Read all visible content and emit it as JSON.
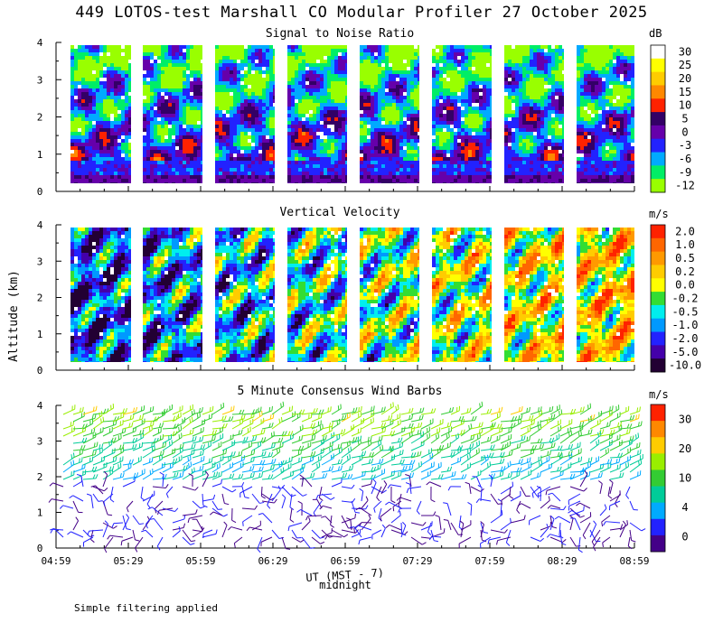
{
  "title": "449 LOTOS-test Marshall CO Modular Profiler 27 October 2025",
  "ylabel": "Altitude (km)",
  "xlabel": "UT (MST - 7)",
  "midnight_label": "midnight",
  "footnote": "Simple filtering applied",
  "chart_data": [
    {
      "type": "heatmap",
      "title": "Signal to Noise Ratio",
      "unit": "dB",
      "ylim": [
        0,
        4
      ],
      "y_ticks": [
        "0",
        "1",
        "2",
        "3",
        "4"
      ],
      "x_ticks": [
        "04:59",
        "05:29",
        "05:59",
        "06:29",
        "06:59",
        "07:29",
        "07:59",
        "08:29",
        "08:59"
      ],
      "scale_labels": [
        "30",
        "25",
        "20",
        "15",
        "10",
        "5",
        "0",
        "-3",
        "-6",
        "-9",
        "-12"
      ],
      "scale_colors": [
        "#ffffff",
        "#ffff00",
        "#ffcc00",
        "#ff8800",
        "#ff2200",
        "#330066",
        "#6600aa",
        "#2222ff",
        "#00aaff",
        "#00ee66",
        "#99ff00"
      ]
    },
    {
      "type": "heatmap",
      "title": "Vertical Velocity",
      "unit": "m/s",
      "ylim": [
        0,
        4
      ],
      "y_ticks": [
        "0",
        "1",
        "2",
        "3",
        "4"
      ],
      "x_ticks": [
        "04:59",
        "05:29",
        "05:59",
        "06:29",
        "06:59",
        "07:29",
        "07:59",
        "08:29",
        "08:59"
      ],
      "scale_labels": [
        "2.0",
        "1.0",
        "0.5",
        "0.2",
        "0.0",
        "-0.2",
        "-0.5",
        "-1.0",
        "-2.0",
        "-5.0",
        "-10.0"
      ],
      "scale_colors": [
        "#ff2200",
        "#ff6600",
        "#ff9900",
        "#ffcc00",
        "#ffff00",
        "#33dd33",
        "#00eeee",
        "#0099ff",
        "#2222ff",
        "#4400aa",
        "#220033"
      ]
    },
    {
      "type": "scatter",
      "title": "5 Minute Consensus Wind Barbs",
      "unit": "m/s",
      "ylim": [
        0,
        4
      ],
      "y_ticks": [
        "0",
        "1",
        "2",
        "3",
        "4"
      ],
      "x_ticks": [
        "04:59",
        "05:29",
        "05:59",
        "06:29",
        "06:59",
        "07:29",
        "07:59",
        "08:29",
        "08:59"
      ],
      "scale_labels": [
        "30",
        "20",
        "10",
        "4",
        "0"
      ],
      "scale_colors": [
        "#ff2200",
        "#ff8800",
        "#ffcc00",
        "#99ee00",
        "#33cc33",
        "#00cc99",
        "#00aaff",
        "#2222ff",
        "#440088"
      ]
    }
  ]
}
